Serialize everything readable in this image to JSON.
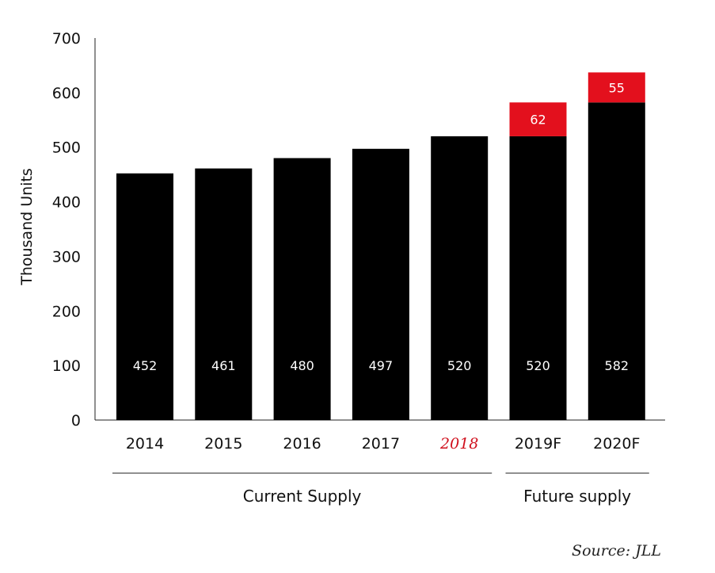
{
  "chart_data": {
    "type": "bar",
    "stacked": true,
    "ylabel": "Thousand Units",
    "ylim": [
      0,
      700
    ],
    "yticks": [
      0,
      100,
      200,
      300,
      400,
      500,
      600,
      700
    ],
    "grid": false,
    "categories": [
      "2014",
      "2015",
      "2016",
      "2017",
      "2018",
      "2019F",
      "2020F"
    ],
    "highlighted_category": "2018",
    "series": [
      {
        "values": [
          452,
          461,
          480,
          497,
          520,
          520,
          582
        ],
        "color": "#000000"
      },
      {
        "values": [
          0,
          0,
          0,
          0,
          0,
          62,
          55
        ],
        "color": "#e3101d"
      }
    ],
    "groups": [
      {
        "label": "Current Supply",
        "from": "2014",
        "to": "2018"
      },
      {
        "label": "Future supply",
        "from": "2019F",
        "to": "2020F"
      }
    ]
  },
  "source": "Source: JLL"
}
